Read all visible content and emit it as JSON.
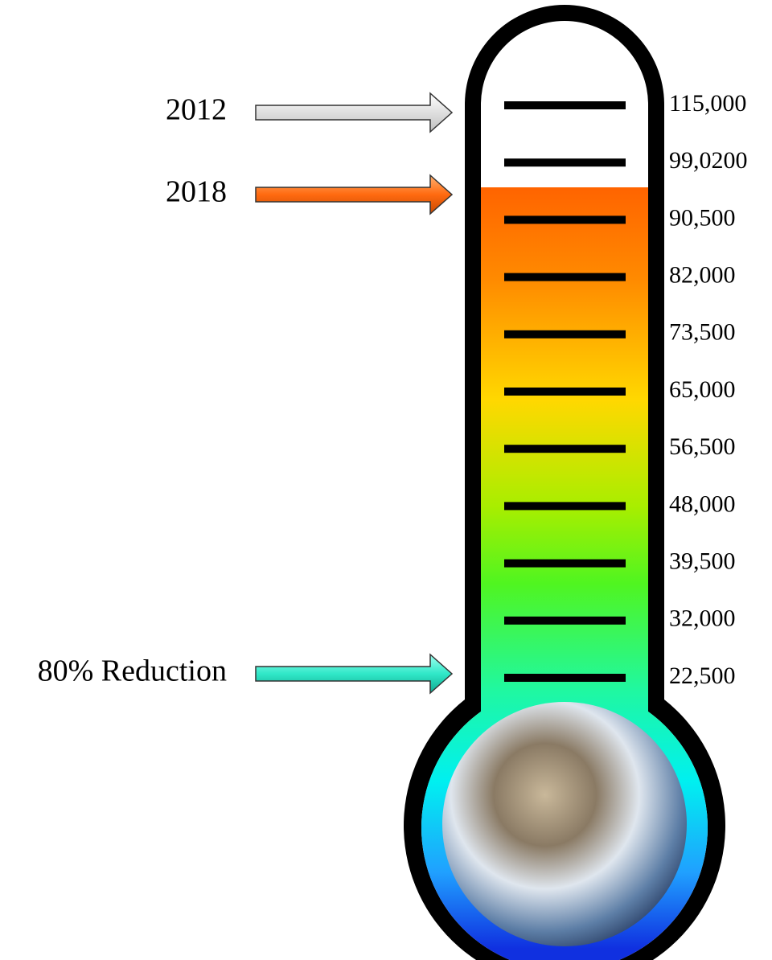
{
  "ticks": [
    "115,000",
    "99,0200",
    "90,500",
    "82,000",
    "73,500",
    "65,000",
    "56,500",
    "48,000",
    "39,500",
    "32,000",
    "22,500"
  ],
  "markers": [
    {
      "label": "2012"
    },
    {
      "label": "2018"
    },
    {
      "label": "80% Reduction"
    }
  ]
}
